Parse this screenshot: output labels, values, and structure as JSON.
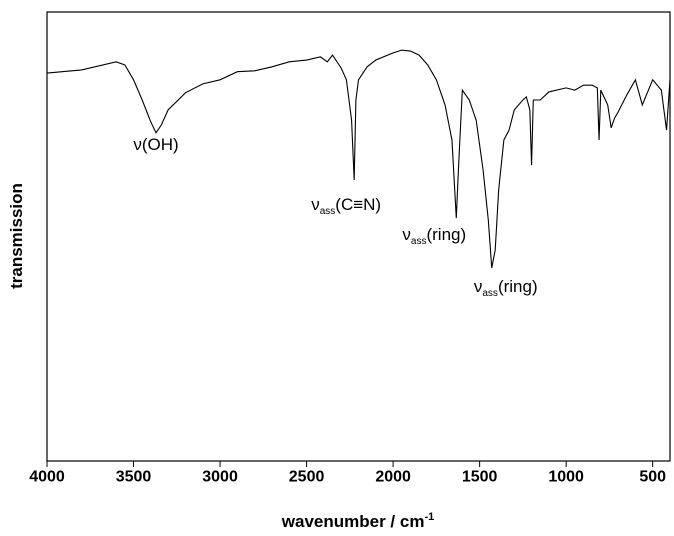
{
  "chart_data": {
    "type": "line",
    "x_label": {
      "text": "wavenumber / cm",
      "sup": "-1"
    },
    "y_label": "transmission",
    "xlim": [
      4000,
      400
    ],
    "ylim": [
      0,
      100
    ],
    "xticks": [
      4000,
      3500,
      3000,
      2500,
      2000,
      1500,
      1000,
      500
    ],
    "series": [
      {
        "color": "#000000",
        "x": [
          4000,
          3800,
          3600,
          3550,
          3500,
          3450,
          3400,
          3370,
          3340,
          3300,
          3200,
          3100,
          3000,
          2900,
          2800,
          2700,
          2600,
          2500,
          2420,
          2380,
          2350,
          2300,
          2270,
          2240,
          2225,
          2215,
          2200,
          2150,
          2100,
          2000,
          1950,
          1900,
          1850,
          1800,
          1750,
          1700,
          1660,
          1635,
          1620,
          1600,
          1560,
          1520,
          1480,
          1450,
          1430,
          1410,
          1390,
          1360,
          1330,
          1300,
          1250,
          1230,
          1210,
          1200,
          1190,
          1150,
          1100,
          1000,
          950,
          900,
          850,
          820,
          810,
          800,
          760,
          740,
          720,
          700,
          650,
          600,
          560,
          500,
          450,
          420,
          400
        ],
        "values": [
          86.4,
          87.1,
          88.9,
          88.2,
          84.9,
          80.4,
          75.5,
          73.1,
          74.8,
          78.2,
          82.0,
          84.0,
          84.9,
          86.7,
          86.9,
          87.8,
          88.9,
          89.3,
          90.0,
          88.9,
          90.4,
          87.5,
          84.9,
          75.9,
          62.6,
          80.4,
          84.9,
          87.8,
          89.3,
          90.9,
          91.5,
          91.3,
          90.4,
          88.2,
          84.9,
          79.3,
          71.5,
          54.1,
          67.0,
          82.6,
          80.4,
          75.9,
          64.8,
          53.7,
          43.0,
          47.0,
          60.4,
          71.5,
          73.7,
          78.2,
          80.4,
          81.1,
          78.2,
          65.9,
          80.4,
          80.4,
          82.2,
          83.1,
          82.6,
          83.7,
          83.7,
          83.1,
          71.5,
          82.6,
          79.3,
          74.2,
          76.4,
          77.7,
          81.5,
          84.9,
          79.3,
          84.9,
          82.6,
          73.7,
          84.9
        ]
      }
    ],
    "annotations": [
      {
        "text": "ν(OH)",
        "x": 3370
      },
      {
        "symbol": "ν",
        "sub": "ass",
        "text": "(C≡N)",
        "x": 2225
      },
      {
        "symbol": "ν",
        "sub": "ass",
        "text": "(ring)",
        "x": 1635
      },
      {
        "symbol": "ν",
        "sub": "ass",
        "text": "(ring)",
        "x": 1430
      }
    ]
  }
}
